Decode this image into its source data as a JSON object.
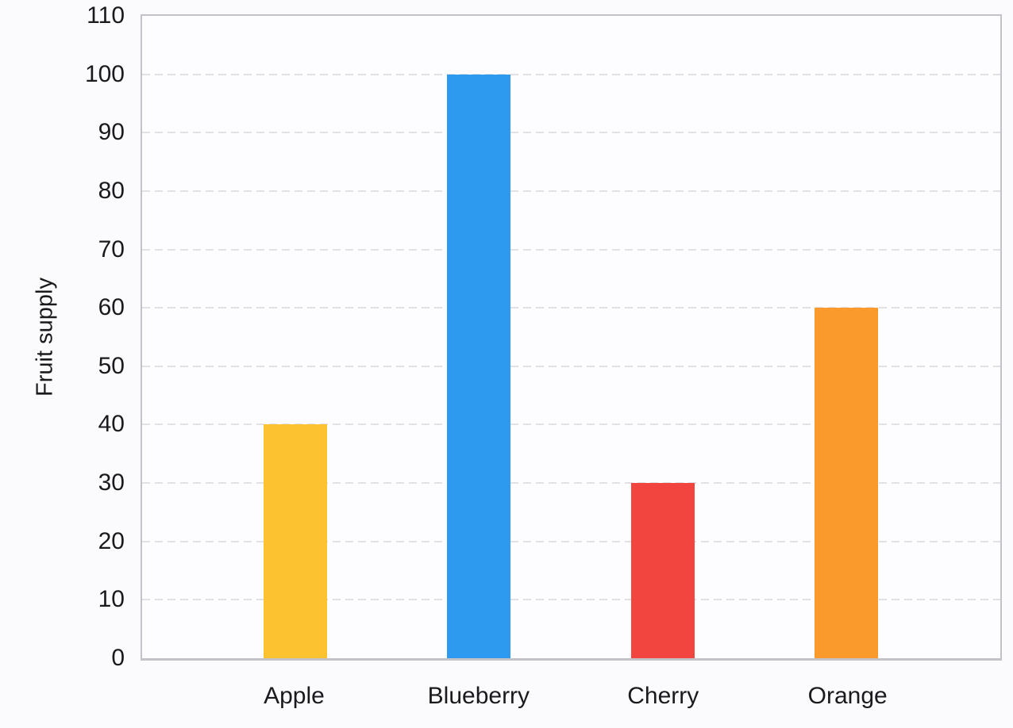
{
  "chart_data": {
    "type": "bar",
    "categories": [
      "Apple",
      "Blueberry",
      "Cherry",
      "Orange"
    ],
    "values": [
      40,
      100,
      30,
      60
    ],
    "bar_colors": [
      "#FCC22F",
      "#2D9AEF",
      "#F2453F",
      "#FB9A2C"
    ],
    "title": "",
    "xlabel": "",
    "ylabel": "Fruit supply",
    "ylim": [
      0,
      110
    ],
    "yticks": [
      0,
      10,
      20,
      30,
      40,
      50,
      60,
      70,
      80,
      90,
      100,
      110
    ],
    "grid": "horizontal dashed gridlines at each y tick",
    "legend": "none",
    "style": {
      "page_background": "#FBFBFE",
      "plot_background": "#FDFDFF",
      "grid_color": "#E1E1E5",
      "axis_border_color": "#C2C2C8",
      "text_color": "#1A1A1E"
    }
  }
}
